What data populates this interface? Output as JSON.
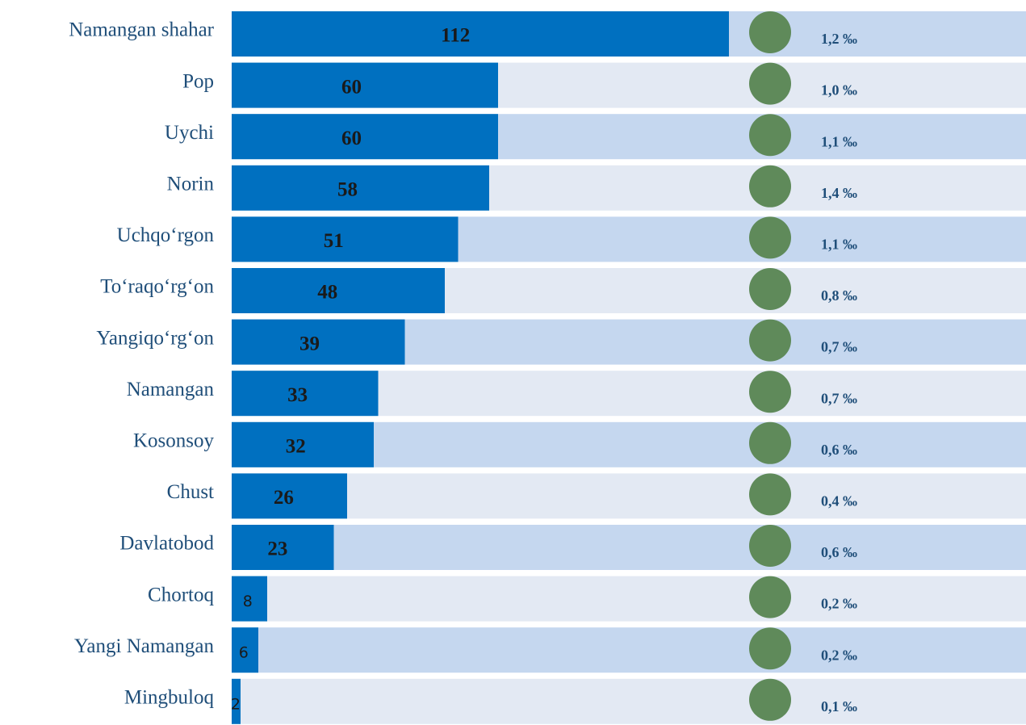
{
  "chart_data": {
    "type": "bar",
    "orientation": "horizontal",
    "categories": [
      "Namangan shahar",
      "Pop",
      "Uychi",
      "Norin",
      "Uchqo‘rgon",
      "To‘raqo‘rg‘on",
      "Yangiqo‘rg‘on",
      "Namangan",
      "Kosonsoy",
      "Chust",
      "Davlatobod",
      "Chortoq",
      "Yangi Namangan",
      "Mingbuloq"
    ],
    "series": [
      {
        "color": "#0070c0",
        "values": [
          112,
          60,
          60,
          58,
          51,
          48,
          39,
          33,
          32,
          26,
          23,
          8,
          6,
          2
        ]
      },
      {
        "color": "#5f8a5a",
        "values": [
          1.2,
          1.0,
          1.1,
          1.4,
          1.1,
          0.8,
          0.7,
          0.7,
          0.6,
          0.4,
          0.6,
          0.2,
          0.2,
          0.1
        ],
        "value_labels": [
          "1,2 ‰",
          "1,0 ‰",
          "1,1 ‰",
          "1,4 ‰",
          "1,1 ‰",
          "0,8 ‰",
          "0,7 ‰",
          "0,7 ‰",
          "0,6 ‰",
          "0,4 ‰",
          "0,6 ‰",
          "0,2 ‰",
          "0,2 ‰",
          "0,1 ‰"
        ]
      }
    ]
  }
}
